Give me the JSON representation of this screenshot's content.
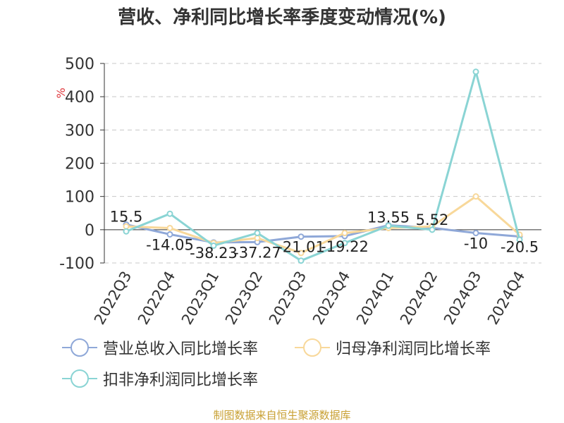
{
  "title": "营收、净利同比增长率季度变动情况(%)",
  "y_unit": "%",
  "footer": "制图数据来自恒生聚源数据库",
  "colors": {
    "axis": "#333333",
    "grid": "#c8c8c8",
    "unit": "#e0393e"
  },
  "chart_data": {
    "type": "line",
    "categories": [
      "2022Q3",
      "2022Q4",
      "2023Q1",
      "2023Q2",
      "2023Q3",
      "2023Q4",
      "2024Q1",
      "2024Q2",
      "2024Q3",
      "2024Q4"
    ],
    "ylim": [
      -100,
      500
    ],
    "yticks": [
      -100,
      0,
      100,
      200,
      300,
      400,
      500
    ],
    "grid": true,
    "legend_position": "bottom",
    "series": [
      {
        "name": "营业总收入同比增长率",
        "color": "#8fa8d8",
        "values": [
          15.5,
          -14.05,
          -38.23,
          -37.27,
          -21.01,
          -19.22,
          13.55,
          5.52,
          -10,
          -20.5
        ],
        "labels": [
          "15.5",
          "-14.05",
          "-38.23",
          "-37.27",
          "-21.01",
          "-19.22",
          "13.55",
          "5.52",
          "-10",
          "-20.5"
        ]
      },
      {
        "name": "归母净利润同比增长率",
        "color": "#f8d89a",
        "values": [
          10,
          5,
          -40,
          -25,
          -70,
          -10,
          5,
          10,
          100,
          -15
        ]
      },
      {
        "name": "扣非净利润同比增长率",
        "color": "#8ad4d4",
        "values": [
          -5,
          48,
          -48,
          -10,
          -93,
          -40,
          12,
          0,
          475,
          -30
        ]
      }
    ]
  }
}
